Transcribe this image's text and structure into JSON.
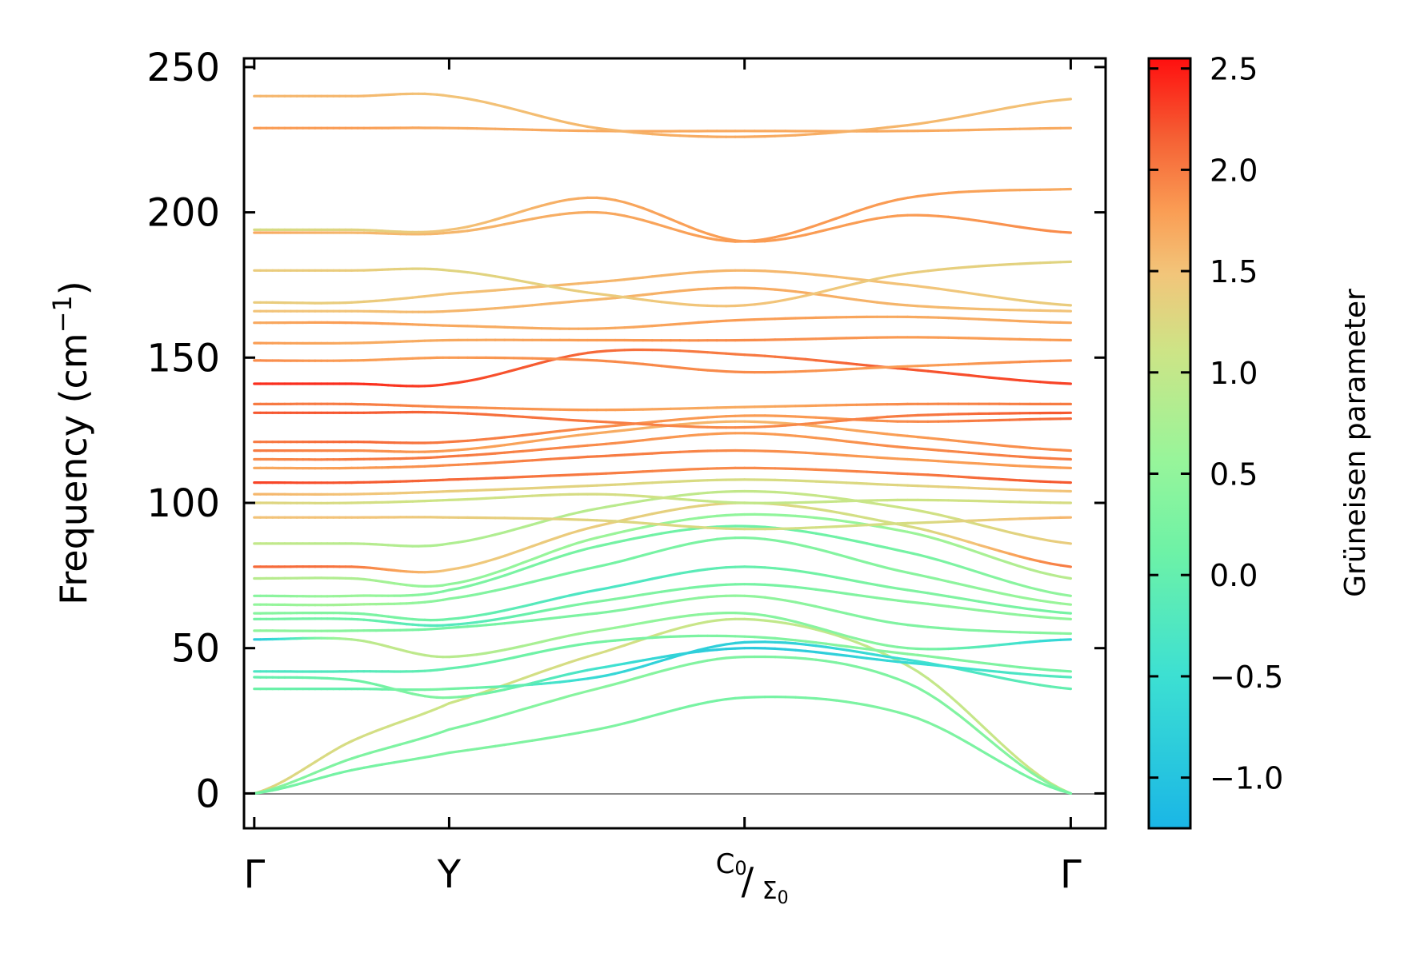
{
  "chart_data": {
    "type": "line",
    "title": "",
    "xlabel": "",
    "ylabel": "Frequency (cm",
    "ylabel_sup": "−1",
    "ylabel_close": ")",
    "ylim": [
      -12,
      253
    ],
    "yticks": [
      0,
      50,
      100,
      150,
      200,
      250
    ],
    "ytick_labels": [
      "0",
      "50",
      "100",
      "150",
      "200",
      "250"
    ],
    "xlim": [
      -0.05,
      4.15
    ],
    "xticks": [
      {
        "pos": 0.0,
        "label": "Γ"
      },
      {
        "pos": 0.95,
        "label": "Y"
      },
      {
        "pos": 2.39,
        "label": "C",
        "sub": "0",
        "label2": "Σ",
        "sub2": "0"
      },
      {
        "pos": 3.98,
        "label": "Γ"
      }
    ],
    "x_knots": [
      0,
      0.475,
      0.95,
      1.67,
      2.39,
      3.185,
      3.98
    ],
    "bands": [
      {
        "y": [
          0,
          18,
          31,
          48,
          60,
          44,
          0
        ],
        "g": [
          1.3,
          1.2,
          1.1,
          1.2,
          1.0,
          1.0,
          1.1
        ]
      },
      {
        "y": [
          0,
          12,
          22,
          36,
          47,
          38,
          0
        ],
        "g": [
          0.4,
          0.3,
          0.3,
          0.4,
          0.3,
          0.3,
          0.4
        ]
      },
      {
        "y": [
          0,
          8,
          14,
          22,
          33,
          27,
          0
        ],
        "g": [
          0.2,
          0.2,
          0.3,
          0.3,
          0.2,
          0.3,
          0.2
        ]
      },
      {
        "y": [
          36,
          36,
          36,
          40,
          52,
          46,
          36
        ],
        "g": [
          0.1,
          0.0,
          0.2,
          -0.6,
          -0.8,
          -0.5,
          0.0
        ]
      },
      {
        "y": [
          40,
          39,
          33,
          43,
          50,
          45,
          40
        ],
        "g": [
          0.0,
          0.1,
          0.3,
          -0.4,
          -0.9,
          -0.6,
          -0.2
        ]
      },
      {
        "y": [
          42,
          42,
          43,
          52,
          54,
          48,
          42
        ],
        "g": [
          -0.3,
          -0.2,
          0.0,
          0.2,
          0.3,
          0.4,
          0.2
        ]
      },
      {
        "y": [
          53,
          53,
          47,
          56,
          62,
          50,
          53
        ],
        "g": [
          -0.9,
          0.8,
          0.9,
          0.6,
          0.4,
          0.3,
          -0.7
        ]
      },
      {
        "y": [
          56,
          56,
          57,
          62,
          68,
          58,
          55
        ],
        "g": [
          0.5,
          0.4,
          0.2,
          0.3,
          0.5,
          0.3,
          0.4
        ]
      },
      {
        "y": [
          60,
          60,
          58,
          66,
          72,
          66,
          60
        ],
        "g": [
          0.2,
          0.1,
          -0.2,
          0.3,
          0.2,
          0.4,
          0.5
        ]
      },
      {
        "y": [
          62,
          62,
          60,
          70,
          78,
          70,
          62
        ],
        "g": [
          0.4,
          0.3,
          0.1,
          -0.3,
          0.0,
          0.3,
          0.2
        ]
      },
      {
        "y": [
          65,
          65,
          67,
          78,
          88,
          76,
          65
        ],
        "g": [
          0.5,
          0.7,
          0.4,
          0.2,
          0.3,
          0.4,
          0.6
        ]
      },
      {
        "y": [
          68,
          68,
          70,
          85,
          92,
          83,
          68
        ],
        "g": [
          0.4,
          0.6,
          0.3,
          0.2,
          0.1,
          0.2,
          0.5
        ]
      },
      {
        "y": [
          74,
          74,
          72,
          88,
          96,
          90,
          74
        ],
        "g": [
          0.9,
          0.8,
          0.5,
          0.6,
          0.5,
          0.6,
          0.9
        ]
      },
      {
        "y": [
          78,
          78,
          77,
          92,
          100,
          92,
          78
        ],
        "g": [
          2.1,
          2.0,
          1.5,
          1.4,
          1.3,
          1.2,
          2.0
        ]
      },
      {
        "y": [
          86,
          86,
          86,
          98,
          104,
          98,
          86
        ],
        "g": [
          1.0,
          0.9,
          0.8,
          0.9,
          1.0,
          1.1,
          1.4
        ]
      },
      {
        "y": [
          95,
          95,
          95,
          94,
          91,
          93,
          95
        ],
        "g": [
          1.5,
          1.5,
          1.4,
          1.3,
          1.2,
          1.2,
          1.6
        ]
      },
      {
        "y": [
          100,
          100,
          101,
          103,
          100,
          101,
          100
        ],
        "g": [
          1.3,
          1.2,
          1.1,
          1.2,
          1.0,
          1.1,
          1.2
        ]
      },
      {
        "y": [
          103,
          103,
          104,
          106,
          108,
          106,
          104
        ],
        "g": [
          1.6,
          1.5,
          1.4,
          1.3,
          1.2,
          1.3,
          1.5
        ]
      },
      {
        "y": [
          107,
          107,
          108,
          110,
          112,
          110,
          107
        ],
        "g": [
          2.3,
          2.2,
          2.1,
          2.0,
          1.9,
          2.0,
          2.2
        ]
      },
      {
        "y": [
          112,
          112,
          113,
          116,
          118,
          115,
          112
        ],
        "g": [
          1.7,
          1.8,
          1.9,
          2.0,
          1.9,
          1.8,
          1.8
        ]
      },
      {
        "y": [
          115,
          115,
          116,
          120,
          124,
          119,
          115
        ],
        "g": [
          1.9,
          2.0,
          2.0,
          1.9,
          1.8,
          1.9,
          2.0
        ]
      },
      {
        "y": [
          118,
          118,
          118,
          124,
          128,
          123,
          118
        ],
        "g": [
          2.0,
          1.9,
          1.8,
          1.7,
          1.6,
          1.8,
          1.9
        ]
      },
      {
        "y": [
          121,
          121,
          121,
          126,
          130,
          128,
          129
        ],
        "g": [
          2.0,
          2.1,
          2.0,
          1.9,
          1.8,
          1.9,
          2.1
        ]
      },
      {
        "y": [
          131,
          131,
          131,
          128,
          126,
          130,
          131
        ],
        "g": [
          2.2,
          2.2,
          2.1,
          2.0,
          1.9,
          2.0,
          2.2
        ]
      },
      {
        "y": [
          134,
          134,
          133,
          132,
          133,
          134,
          134
        ],
        "g": [
          2.0,
          2.0,
          1.9,
          1.8,
          1.7,
          1.9,
          2.0
        ]
      },
      {
        "y": [
          141,
          141,
          141,
          152,
          151,
          146,
          141
        ],
        "g": [
          2.4,
          2.4,
          2.3,
          2.1,
          2.0,
          2.2,
          2.3
        ]
      },
      {
        "y": [
          149,
          149,
          150,
          149,
          145,
          147,
          149
        ],
        "g": [
          1.9,
          1.8,
          1.8,
          1.9,
          1.9,
          1.8,
          1.9
        ]
      },
      {
        "y": [
          155,
          155,
          156,
          156,
          156,
          157,
          156
        ],
        "g": [
          1.8,
          1.7,
          1.7,
          1.8,
          1.9,
          1.8,
          1.8
        ]
      },
      {
        "y": [
          162,
          162,
          161,
          160,
          163,
          164,
          162
        ],
        "g": [
          1.7,
          1.8,
          1.7,
          1.7,
          1.8,
          1.7,
          1.7
        ]
      },
      {
        "y": [
          166,
          166,
          166,
          170,
          174,
          168,
          166
        ],
        "g": [
          1.5,
          1.5,
          1.6,
          1.6,
          1.7,
          1.6,
          1.5
        ]
      },
      {
        "y": [
          169,
          169,
          172,
          176,
          180,
          175,
          168
        ],
        "g": [
          1.4,
          1.4,
          1.5,
          1.6,
          1.6,
          1.5,
          1.4
        ]
      },
      {
        "y": [
          180,
          180,
          180,
          172,
          168,
          179,
          183
        ],
        "g": [
          1.4,
          1.4,
          1.3,
          1.4,
          1.5,
          1.4,
          1.3
        ]
      },
      {
        "y": [
          193,
          193,
          193,
          200,
          190,
          205,
          208
        ],
        "g": [
          1.7,
          1.6,
          1.6,
          1.7,
          1.8,
          1.8,
          1.7
        ]
      },
      {
        "y": [
          194,
          194,
          194,
          205,
          190,
          199,
          193
        ],
        "g": [
          1.2,
          1.3,
          1.5,
          1.7,
          1.8,
          1.8,
          1.9
        ]
      },
      {
        "y": [
          229,
          229,
          229,
          228,
          228,
          228,
          229
        ],
        "g": [
          1.8,
          1.8,
          1.7,
          1.7,
          1.7,
          1.7,
          1.7
        ]
      },
      {
        "y": [
          240,
          240,
          240,
          229,
          226,
          230,
          239
        ],
        "g": [
          1.6,
          1.6,
          1.5,
          1.6,
          1.7,
          1.6,
          1.5
        ]
      }
    ],
    "colorbar": {
      "label": "Grüneisen parameter",
      "range": [
        -1.25,
        2.55
      ],
      "ticks": [
        -1.0,
        -0.5,
        0.0,
        0.5,
        1.0,
        1.5,
        2.0,
        2.5
      ],
      "tick_labels": [
        "−1.0",
        "−0.5",
        "0.0",
        "0.5",
        "1.0",
        "1.5",
        "2.0",
        "2.5"
      ],
      "colormap": "rainbow (cyan → green → yellow → orange → red)",
      "stops": [
        {
          "v": 0.0,
          "c": "#1ab6e6"
        },
        {
          "v": 0.2,
          "c": "#3de0d2"
        },
        {
          "v": 0.36,
          "c": "#6ef2a6"
        },
        {
          "v": 0.48,
          "c": "#98f59a"
        },
        {
          "v": 0.62,
          "c": "#cde486"
        },
        {
          "v": 0.72,
          "c": "#f2c57a"
        },
        {
          "v": 0.8,
          "c": "#fa9e55"
        },
        {
          "v": 0.9,
          "c": "#f55e33"
        },
        {
          "v": 1.0,
          "c": "#ff0f0f"
        }
      ]
    }
  }
}
